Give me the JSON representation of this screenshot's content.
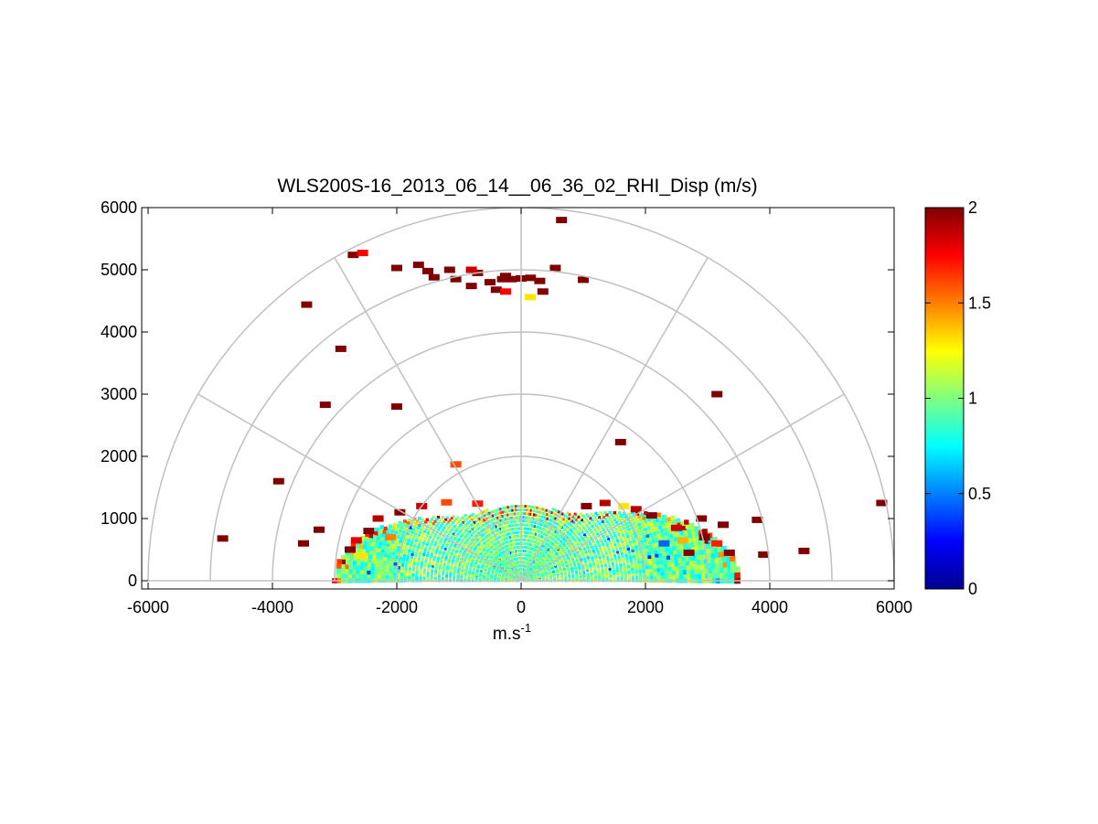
{
  "chart_data": {
    "type": "heatmap",
    "subtype": "polar RHI scan",
    "title": "WLS200S-16_2013_06_14__06_36_02_RHI_Disp (m/s)",
    "xlabel": {
      "base": "m.s",
      "sup": "-1"
    },
    "ylabel": "",
    "xlim": [
      -6000,
      6000
    ],
    "ylim": [
      -100,
      6000
    ],
    "x_ticks": [
      -6000,
      -4000,
      -2000,
      0,
      2000,
      4000,
      6000
    ],
    "x_tick_labels": [
      "-6000",
      "-4000",
      "-2000",
      "0",
      "2000",
      "4000",
      "6000"
    ],
    "y_ticks": [
      0,
      1000,
      2000,
      3000,
      4000,
      5000,
      6000
    ],
    "y_tick_labels": [
      "0",
      "1000",
      "2000",
      "3000",
      "4000",
      "5000",
      "6000"
    ],
    "polar_grid": {
      "radii": [
        1000,
        2000,
        3000,
        4000,
        5000,
        6000
      ],
      "spokes_deg": [
        0,
        30,
        60,
        90,
        120,
        150,
        180
      ]
    },
    "grid": true,
    "colorbar": {
      "colormap": "jet",
      "range": [
        0,
        2
      ],
      "ticks": [
        0,
        0.5,
        1,
        1.5,
        2
      ],
      "tick_labels": [
        "0",
        "0.5",
        "1",
        "1.5",
        "2"
      ],
      "placement": "right"
    },
    "dense_region": {
      "max_range": 1250,
      "left_edge_range": 3000,
      "right_edge_range": 3500,
      "typical_value": 0.95
    },
    "cells": [
      {
        "x": 650,
        "y": 5800,
        "v": 2
      },
      {
        "x": -2700,
        "y": 5240,
        "v": 2
      },
      {
        "x": -2550,
        "y": 5270,
        "v": 1.75
      },
      {
        "x": -2000,
        "y": 5030,
        "v": 2
      },
      {
        "x": -1650,
        "y": 5080,
        "v": 2
      },
      {
        "x": -1500,
        "y": 4980,
        "v": 2
      },
      {
        "x": -1400,
        "y": 4880,
        "v": 2
      },
      {
        "x": -1150,
        "y": 5000,
        "v": 2
      },
      {
        "x": -1050,
        "y": 4850,
        "v": 2
      },
      {
        "x": -800,
        "y": 4740,
        "v": 2
      },
      {
        "x": -700,
        "y": 4950,
        "v": 2
      },
      {
        "x": -800,
        "y": 5000,
        "v": 1.85
      },
      {
        "x": -500,
        "y": 4800,
        "v": 2
      },
      {
        "x": -400,
        "y": 4680,
        "v": 2
      },
      {
        "x": -250,
        "y": 4900,
        "v": 2
      },
      {
        "x": -300,
        "y": 4850,
        "v": 2
      },
      {
        "x": -250,
        "y": 4650,
        "v": 1.75
      },
      {
        "x": -150,
        "y": 4850,
        "v": 2
      },
      {
        "x": 0,
        "y": 4860,
        "v": 2
      },
      {
        "x": 150,
        "y": 4870,
        "v": 2
      },
      {
        "x": 150,
        "y": 4560,
        "v": 1.3
      },
      {
        "x": 300,
        "y": 4820,
        "v": 2
      },
      {
        "x": 350,
        "y": 4650,
        "v": 2
      },
      {
        "x": 550,
        "y": 5030,
        "v": 2
      },
      {
        "x": 1000,
        "y": 4840,
        "v": 2
      },
      {
        "x": -3450,
        "y": 4440,
        "v": 2
      },
      {
        "x": -2900,
        "y": 3730,
        "v": 2
      },
      {
        "x": -3150,
        "y": 2830,
        "v": 2
      },
      {
        "x": -2000,
        "y": 2800,
        "v": 2
      },
      {
        "x": -3900,
        "y": 1600,
        "v": 2
      },
      {
        "x": -4800,
        "y": 680,
        "v": 2
      },
      {
        "x": -3500,
        "y": 600,
        "v": 2
      },
      {
        "x": -3250,
        "y": 820,
        "v": 2
      },
      {
        "x": 3150,
        "y": 3000,
        "v": 2
      },
      {
        "x": 1600,
        "y": 2230,
        "v": 2
      },
      {
        "x": 3800,
        "y": 980,
        "v": 2
      },
      {
        "x": 3900,
        "y": 420,
        "v": 2
      },
      {
        "x": 4550,
        "y": 480,
        "v": 2
      },
      {
        "x": 5800,
        "y": 1250,
        "v": 2
      },
      {
        "x": -1050,
        "y": 1870,
        "v": 1.6
      },
      {
        "x": 2700,
        "y": 450,
        "v": 2
      },
      {
        "x": 2950,
        "y": 700,
        "v": 2
      },
      {
        "x": 3150,
        "y": 600,
        "v": 1.7
      },
      {
        "x": 3250,
        "y": 900,
        "v": 2
      },
      {
        "x": 3350,
        "y": 450,
        "v": 2
      },
      {
        "x": 2500,
        "y": 850,
        "v": 1.85
      },
      {
        "x": 2300,
        "y": 600,
        "v": 0.45
      },
      {
        "x": 2600,
        "y": 650,
        "v": 1.4
      },
      {
        "x": 2100,
        "y": 1050,
        "v": 2
      },
      {
        "x": 1850,
        "y": 1150,
        "v": 1.9
      },
      {
        "x": 1650,
        "y": 1200,
        "v": 1.3
      },
      {
        "x": 2900,
        "y": 1000,
        "v": 2
      },
      {
        "x": -2650,
        "y": 650,
        "v": 1.8
      },
      {
        "x": -2750,
        "y": 500,
        "v": 2
      },
      {
        "x": -2450,
        "y": 800,
        "v": 2
      },
      {
        "x": -2300,
        "y": 1000,
        "v": 1.9
      },
      {
        "x": -2550,
        "y": 400,
        "v": 1.3
      },
      {
        "x": -1950,
        "y": 1100,
        "v": 2
      },
      {
        "x": -1600,
        "y": 1200,
        "v": 1.85
      },
      {
        "x": -2100,
        "y": 700,
        "v": 1.5
      },
      {
        "x": 1350,
        "y": 1250,
        "v": 1.9
      },
      {
        "x": 1050,
        "y": 1200,
        "v": 2
      },
      {
        "x": -1200,
        "y": 1260,
        "v": 1.6
      },
      {
        "x": -700,
        "y": 1240,
        "v": 1.7
      }
    ]
  }
}
